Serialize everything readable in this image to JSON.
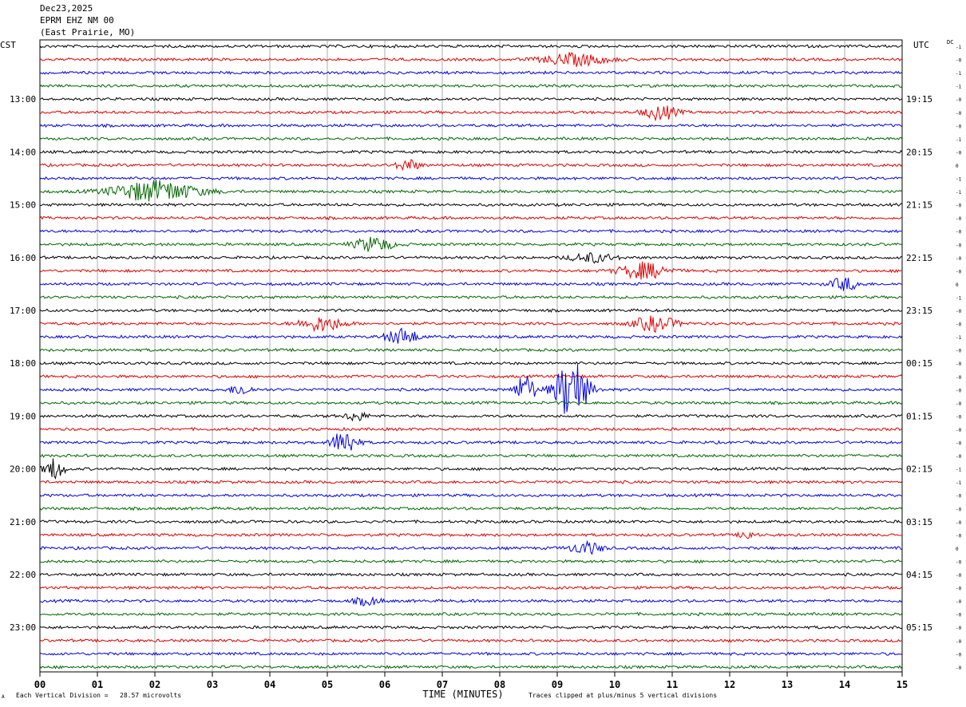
{
  "header": {
    "date": "Dec23,2025",
    "station": "EPRM EHZ NM 00",
    "location": "(East Prairie, MO)",
    "left_zone": "CST",
    "right_zone": "UTC",
    "dc_label": "DC"
  },
  "footer": {
    "vertical_division": "Each Vertical Division =   28.57 microvolts",
    "clip_note": "Traces clipped at plus/minus 5 vertical divisions",
    "corner_mark": "A"
  },
  "chart_data": {
    "type": "line",
    "title": "",
    "xlabel": "TIME (MINUTES)",
    "xlim": [
      0,
      15
    ],
    "x_ticks": [
      "00",
      "01",
      "02",
      "03",
      "04",
      "05",
      "06",
      "07",
      "08",
      "09",
      "10",
      "11",
      "12",
      "13",
      "14",
      "15"
    ],
    "trace_count": 48,
    "trace_colors": [
      "#000000",
      "#e00000",
      "#0000e0",
      "#006600"
    ],
    "left_hour_labels": [
      {
        "trace": 4,
        "label": "13:00"
      },
      {
        "trace": 8,
        "label": "14:00"
      },
      {
        "trace": 12,
        "label": "15:00"
      },
      {
        "trace": 16,
        "label": "16:00"
      },
      {
        "trace": 20,
        "label": "17:00"
      },
      {
        "trace": 24,
        "label": "18:00"
      },
      {
        "trace": 28,
        "label": "19:00"
      },
      {
        "trace": 32,
        "label": "20:00"
      },
      {
        "trace": 36,
        "label": "21:00"
      },
      {
        "trace": 40,
        "label": "22:00"
      },
      {
        "trace": 44,
        "label": "23:00"
      }
    ],
    "right_hour_labels": [
      {
        "trace": 4,
        "label": "19:15"
      },
      {
        "trace": 8,
        "label": "20:15"
      },
      {
        "trace": 12,
        "label": "21:15"
      },
      {
        "trace": 16,
        "label": "22:15"
      },
      {
        "trace": 20,
        "label": "23:15"
      },
      {
        "trace": 24,
        "label": "00:15"
      },
      {
        "trace": 28,
        "label": "01:15"
      },
      {
        "trace": 32,
        "label": "02:15"
      },
      {
        "trace": 36,
        "label": "03:15"
      },
      {
        "trace": 40,
        "label": "04:15"
      },
      {
        "trace": 44,
        "label": "05:15"
      }
    ],
    "dc_offsets": [
      "-1",
      "-0",
      "-1",
      "-1",
      "-0",
      "-0",
      "-0",
      "-1",
      "-0",
      "0",
      "-1",
      "-1",
      "-0",
      "-0",
      "-0",
      "-0",
      "-0",
      "-0",
      "0",
      "-1",
      "-0",
      "-0",
      "-1",
      "-0",
      "-0",
      "-0",
      "-0",
      "-0",
      "-0",
      "-0",
      "-0",
      "-0",
      "-1",
      "-1",
      "-0",
      "-0",
      "-0",
      "-0",
      "0",
      "-0",
      "-0",
      "-0",
      "-0",
      "-0",
      "-0",
      "-0",
      "-0",
      "-0"
    ],
    "events": [
      {
        "trace": 1,
        "minute": 9.3,
        "width": 1.2,
        "amp": 0.45
      },
      {
        "trace": 5,
        "minute": 10.8,
        "width": 0.6,
        "amp": 0.55
      },
      {
        "trace": 9,
        "minute": 6.4,
        "width": 0.4,
        "amp": 0.45
      },
      {
        "trace": 11,
        "minute": 2.0,
        "width": 1.6,
        "amp": 0.8
      },
      {
        "trace": 15,
        "minute": 5.8,
        "width": 0.7,
        "amp": 0.55
      },
      {
        "trace": 16,
        "minute": 9.6,
        "width": 0.8,
        "amp": 0.35
      },
      {
        "trace": 17,
        "minute": 10.5,
        "width": 0.9,
        "amp": 0.6
      },
      {
        "trace": 18,
        "minute": 14.0,
        "width": 0.5,
        "amp": 0.5
      },
      {
        "trace": 21,
        "minute": 4.9,
        "width": 0.8,
        "amp": 0.55
      },
      {
        "trace": 21,
        "minute": 10.7,
        "width": 0.8,
        "amp": 0.55
      },
      {
        "trace": 22,
        "minute": 6.3,
        "width": 0.6,
        "amp": 0.6
      },
      {
        "trace": 26,
        "minute": 3.5,
        "width": 0.4,
        "amp": 0.4
      },
      {
        "trace": 26,
        "minute": 8.45,
        "width": 0.35,
        "amp": 1.2
      },
      {
        "trace": 26,
        "minute": 9.25,
        "width": 0.6,
        "amp": 2.4
      },
      {
        "trace": 28,
        "minute": 5.5,
        "width": 0.4,
        "amp": 0.35
      },
      {
        "trace": 30,
        "minute": 5.3,
        "width": 0.45,
        "amp": 1.0
      },
      {
        "trace": 32,
        "minute": 0.25,
        "width": 0.35,
        "amp": 0.8
      },
      {
        "trace": 37,
        "minute": 12.3,
        "width": 0.25,
        "amp": 0.4
      },
      {
        "trace": 38,
        "minute": 9.5,
        "width": 0.6,
        "amp": 0.45
      },
      {
        "trace": 42,
        "minute": 5.7,
        "width": 0.5,
        "amp": 0.3
      }
    ]
  }
}
